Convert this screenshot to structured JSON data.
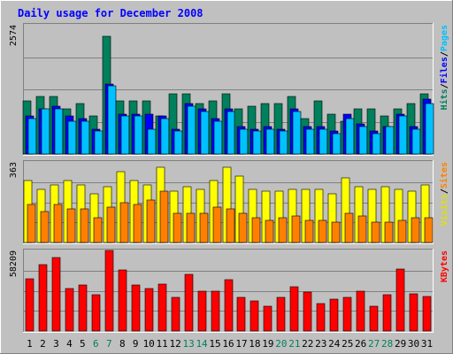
{
  "chart_data": {
    "type": "bar",
    "title": "Daily usage for December 2008",
    "days": [
      "1",
      "2",
      "3",
      "4",
      "5",
      "6",
      "7",
      "8",
      "9",
      "10",
      "11",
      "12",
      "13",
      "14",
      "15",
      "16",
      "17",
      "18",
      "19",
      "20",
      "21",
      "22",
      "23",
      "24",
      "25",
      "26",
      "27",
      "28",
      "29",
      "30",
      "31"
    ],
    "weekend_days": [
      "6",
      "7",
      "13",
      "14",
      "20",
      "21",
      "27",
      "28"
    ],
    "panels": [
      {
        "max_label": "2574",
        "ymax": 2574,
        "axis_legend": [
          {
            "text": "Hits",
            "color": "#00805c"
          },
          {
            "text": "/",
            "color": "#000000"
          },
          {
            "text": "Files",
            "color": "#0000ff"
          },
          {
            "text": "/",
            "color": "#000000"
          },
          {
            "text": "Pages",
            "color": "#00c0ff"
          }
        ],
        "series": [
          {
            "name": "Hits",
            "color": "#00805c",
            "values": [
              1050,
              1150,
              1150,
              900,
              1000,
              750,
              2350,
              1050,
              1050,
              1050,
              750,
              1200,
              1200,
              1000,
              1050,
              1200,
              900,
              950,
              1000,
              1000,
              1150,
              700,
              1050,
              800,
              650,
              900,
              900,
              750,
              900,
              1000,
              1200
            ]
          },
          {
            "name": "Files",
            "color": "#0000ff",
            "values": [
              750,
              900,
              950,
              750,
              700,
              500,
              1400,
              800,
              800,
              800,
              750,
              500,
              1000,
              900,
              700,
              900,
              550,
              500,
              550,
              500,
              900,
              550,
              550,
              450,
              800,
              600,
              450,
              550,
              800,
              550,
              1100
            ]
          },
          {
            "name": "Pages",
            "color": "#00c0ff",
            "values": [
              700,
              900,
              900,
              650,
              650,
              450,
              1350,
              750,
              750,
              500,
              700,
              450,
              950,
              850,
              650,
              850,
              500,
              450,
              500,
              450,
              850,
              500,
              500,
              400,
              700,
              550,
              400,
              550,
              750,
              500,
              1000
            ]
          }
        ]
      },
      {
        "max_label": "363",
        "ymax": 363,
        "axis_legend": [
          {
            "text": "Visits",
            "color": "#e0e000"
          },
          {
            "text": "/",
            "color": "#000000"
          },
          {
            "text": "Sites",
            "color": "#ff8000"
          }
        ],
        "series": [
          {
            "name": "Visits",
            "color": "#ffff00",
            "values": [
              280,
              240,
              260,
              280,
              260,
              220,
              250,
              320,
              280,
              260,
              340,
              230,
              250,
              240,
              280,
              340,
              300,
              240,
              230,
              230,
              240,
              240,
              240,
              220,
              290,
              250,
              240,
              250,
              240,
              230,
              260
            ]
          },
          {
            "name": "Sites",
            "color": "#ff8000",
            "values": [
              170,
              140,
              170,
              150,
              150,
              110,
              160,
              180,
              170,
              190,
              230,
              130,
              130,
              130,
              160,
              150,
              130,
              110,
              100,
              110,
              120,
              100,
              100,
              90,
              130,
              120,
              90,
              90,
              100,
              110,
              110
            ]
          }
        ]
      },
      {
        "max_label": "58209",
        "ymax": 58209,
        "axis_legend": [
          {
            "text": "KBytes",
            "color": "#ff0000"
          }
        ],
        "series": [
          {
            "name": "KBytes",
            "color": "#ff0000",
            "values": [
              38000,
              48000,
              53000,
              31000,
              33000,
              26000,
              58000,
              44000,
              33000,
              31000,
              34000,
              24000,
              41000,
              29000,
              29000,
              37000,
              24000,
              22000,
              18000,
              24000,
              32000,
              28000,
              20000,
              23000,
              24000,
              29000,
              18000,
              26000,
              45000,
              27000,
              25000
            ]
          }
        ]
      }
    ]
  }
}
